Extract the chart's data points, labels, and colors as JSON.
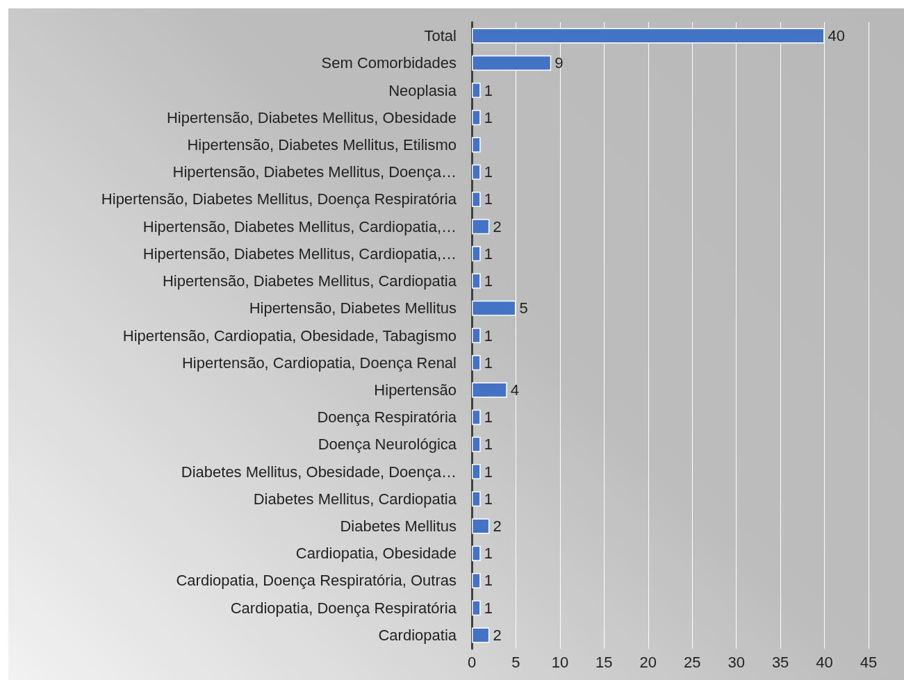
{
  "chart_data": {
    "type": "bar",
    "orientation": "horizontal",
    "color": "#4472c4",
    "categories": [
      "Total",
      "Sem Comorbidades",
      "Neoplasia",
      "Hipertensão, Diabetes Mellitus, Obesidade",
      "Hipertensão, Diabetes Mellitus, Etilismo",
      "Hipertensão, Diabetes Mellitus, Doença…",
      "Hipertensão, Diabetes Mellitus, Doença Respiratória",
      "Hipertensão, Diabetes Mellitus, Cardiopatia,…",
      "Hipertensão, Diabetes Mellitus, Cardiopatia,…",
      "Hipertensão, Diabetes Mellitus, Cardiopatia",
      "Hipertensão, Diabetes Mellitus",
      "Hipertensão, Cardiopatia, Obesidade, Tabagismo",
      "Hipertensão, Cardiopatia, Doença Renal",
      "Hipertensão",
      "Doença Respiratória",
      "Doença Neurológica",
      "Diabetes Mellitus, Obesidade, Doença…",
      "Diabetes Mellitus, Cardiopatia",
      "Diabetes Mellitus",
      "Cardiopatia, Obesidade",
      "Cardiopatia, Doença Respiratória, Outras",
      "Cardiopatia, Doença Respiratória",
      "Cardiopatia"
    ],
    "values": [
      40,
      9,
      1,
      1,
      1,
      1,
      1,
      2,
      1,
      1,
      5,
      1,
      1,
      4,
      1,
      1,
      1,
      1,
      2,
      1,
      1,
      1,
      2
    ],
    "value_labels": [
      "40",
      "9",
      "1",
      "1",
      null,
      "1",
      "1",
      "2",
      "1",
      "1",
      "5",
      "1",
      "1",
      "4",
      "1",
      "1",
      "1",
      "1",
      "2",
      "1",
      "1",
      "1",
      "2"
    ],
    "xlim": [
      0,
      45
    ],
    "xticks": [
      0,
      5,
      10,
      15,
      20,
      25,
      30,
      35,
      40,
      45
    ],
    "grid": "x"
  }
}
